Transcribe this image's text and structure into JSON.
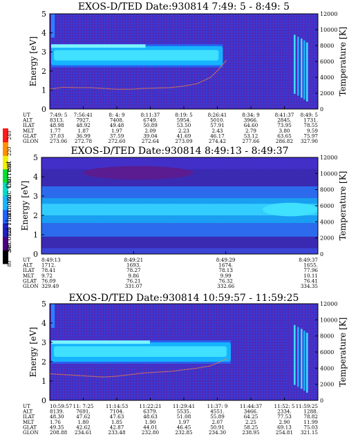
{
  "colorbar": {
    "label": "Second Harmonic Current",
    "ticks": [
      "240",
      "220",
      "200",
      "180",
      "160",
      "140",
      "120",
      "100",
      "80"
    ],
    "colors": [
      "#000000",
      "#4b0082",
      "#2020c8",
      "#1e64ff",
      "#16b4ff",
      "#00dcc8",
      "#00e030",
      "#f0f000",
      "#ff9000",
      "#ff1a1a"
    ]
  },
  "chart_data": [
    {
      "type": "heatmap",
      "title": "EXOS-D/TED   Date:930814   7:49: 5 - 8:49: 5",
      "ylabel": "Energy [eV]",
      "ylabel_right": "Temperature [K]",
      "ylim": [
        0,
        5
      ],
      "ylim_right": [
        0,
        12000
      ],
      "yticks": [
        "0",
        "1",
        "2",
        "3",
        "4",
        "5"
      ],
      "yticks_right": [
        "0",
        "2000",
        "4000",
        "6000",
        "8000",
        "10000",
        "12000"
      ],
      "ephemeris": [
        {
          "label": "UT",
          "values": [
            "7:49: 5",
            "7:56:41",
            "8: 4: 9",
            "8:11:37",
            "8:19: 5",
            "8:26:41",
            "8:34: 9",
            "8:41:37",
            "8:49: 5"
          ]
        },
        {
          "label": "ALT",
          "values": [
            "8313.",
            "7927.",
            "7408.",
            "6749.",
            "5954.",
            "5010.",
            "3966.",
            "2845.",
            "1731."
          ]
        },
        {
          "label": "ILAT",
          "values": [
            "48.98",
            "48.92",
            "49.48",
            "50.89",
            "53.50",
            "57.91",
            "64.60",
            "73.95",
            "78.55"
          ]
        },
        {
          "label": "MLT",
          "values": [
            "1.77",
            "1.87",
            "1.97",
            "2.09",
            "2.23",
            "2.43",
            "2.79",
            "3.80",
            "9.59"
          ]
        },
        {
          "label": "GLAT",
          "values": [
            "37.03",
            "36.99",
            "37.59",
            "39.04",
            "41.69",
            "46.17",
            "53.12",
            "63.65",
            "75.97"
          ]
        },
        {
          "label": "GLON",
          "values": [
            "273.06",
            "272.78",
            "272.60",
            "272.64",
            "273.09",
            "274.42",
            "277.66",
            "286.82",
            "327.90"
          ]
        }
      ],
      "temperature_trace": {
        "x": [
          0,
          0.05,
          0.1,
          0.15,
          0.2,
          0.25,
          0.3,
          0.35,
          0.4,
          0.45,
          0.5,
          0.55,
          0.6,
          0.63,
          0.66
        ],
        "y": [
          2500,
          2750,
          2700,
          2700,
          2600,
          2500,
          2500,
          2600,
          2650,
          2700,
          2900,
          3200,
          4000,
          5000,
          6200
        ]
      }
    },
    {
      "type": "heatmap",
      "title": "EXOS-D/TED   Date:930814   8:49:13 - 8:49:37",
      "ylabel": "Energy [eV]",
      "ylabel_right": "Temperature [K]",
      "ylim": [
        0,
        5
      ],
      "ylim_right": [
        0,
        12000
      ],
      "yticks": [
        "0",
        "1",
        "2",
        "3",
        "4",
        "5"
      ],
      "yticks_right": [
        "0",
        "2000",
        "4000",
        "6000",
        "8000",
        "10000",
        "12000"
      ],
      "ephemeris": [
        {
          "label": "UT",
          "values": [
            "8:49:13",
            "8:49:21",
            "8:49:29",
            "8:49:37"
          ]
        },
        {
          "label": "ALT",
          "values": [
            "1712.",
            "1693.",
            "1674.",
            "1655."
          ]
        },
        {
          "label": "ILAT",
          "values": [
            "78.41",
            "78.27",
            "78.13",
            "77.96"
          ]
        },
        {
          "label": "MLT",
          "values": [
            "9.72",
            "9.86",
            "9.99",
            "10.11"
          ]
        },
        {
          "label": "GLAT",
          "values": [
            "76.09",
            "76.21",
            "76.32",
            "76.41"
          ]
        },
        {
          "label": "GLON",
          "values": [
            "329.49",
            "331.07",
            "332.66",
            "334.35"
          ]
        }
      ]
    },
    {
      "type": "heatmap",
      "title": "EXOS-D/TED   Date:930814   10:59:57 - 11:59:25",
      "ylabel": "Energy [eV]",
      "ylabel_right": "Temperature [K]",
      "ylim": [
        0,
        5
      ],
      "ylim_right": [
        0,
        12000
      ],
      "yticks": [
        "0",
        "1",
        "2",
        "3",
        "4",
        "5"
      ],
      "yticks_right": [
        "0",
        "2000",
        "4000",
        "6000",
        "8000",
        "10000",
        "12000"
      ],
      "ephemeris": [
        {
          "label": "UT",
          "values": [
            "10:59:57",
            "11: 7:25",
            "11:14:53",
            "11:22:21",
            "11:29:41",
            "11:37: 9",
            "11:44:37",
            "11:52: 5",
            "11:59:25"
          ]
        },
        {
          "label": "ALT",
          "values": [
            "8139.",
            "7691.",
            "7104.",
            "6379.",
            "5535.",
            "4551.",
            "3466.",
            "2334.",
            "1288."
          ]
        },
        {
          "label": "ILAT",
          "values": [
            "48.30",
            "47.62",
            "47.63",
            "48.63",
            "51.08",
            "55.89",
            "64.25",
            "77.53",
            "78.82"
          ]
        },
        {
          "label": "MLT",
          "values": [
            "1.76",
            "1.80",
            "1.85",
            "1.90",
            "1.97",
            "2.07",
            "2.25",
            "2.90",
            "11.99"
          ]
        },
        {
          "label": "GLAT",
          "values": [
            "49.35",
            "42.62",
            "42.87",
            "44.01",
            "46.45",
            "50.91",
            "58.25",
            "69.13",
            "75.03"
          ]
        },
        {
          "label": "GLON",
          "values": [
            "208.88",
            "234.61",
            "233.48",
            "232.80",
            "232.85",
            "234.30",
            "238.95",
            "254.81",
            "321.15"
          ]
        }
      ],
      "temperature_trace": {
        "x": [
          0,
          0.05,
          0.1,
          0.15,
          0.2,
          0.25,
          0.3,
          0.35,
          0.4,
          0.45,
          0.5,
          0.55,
          0.6,
          0.63,
          0.66
        ],
        "y": [
          3300,
          3200,
          3100,
          3000,
          2900,
          3000,
          3200,
          3400,
          3500,
          3600,
          3800,
          4000,
          4300,
          4700,
          5200
        ]
      }
    }
  ]
}
